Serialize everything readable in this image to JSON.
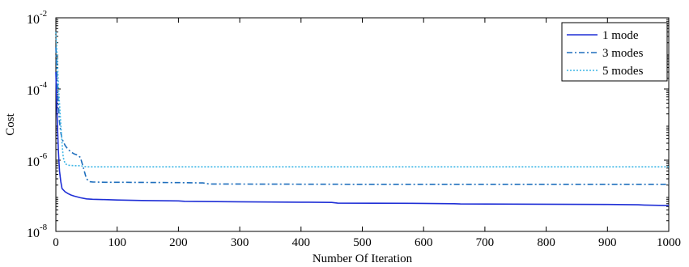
{
  "chart_data": {
    "type": "line",
    "xlabel": "Number Of Iteration",
    "ylabel": "Cost",
    "xlim": [
      0,
      1000
    ],
    "ylim": [
      1e-08,
      0.01
    ],
    "yscale": "log",
    "xticks": [
      0,
      100,
      200,
      300,
      400,
      500,
      600,
      700,
      800,
      900,
      1000
    ],
    "yticks": [
      {
        "value": 1e-08,
        "base": "10",
        "exp": "-8"
      },
      {
        "value": 1e-06,
        "base": "10",
        "exp": "-6"
      },
      {
        "value": 0.0001,
        "base": "10",
        "exp": "-4"
      },
      {
        "value": 0.01,
        "base": "10",
        "exp": "-2"
      }
    ],
    "grid": false,
    "legend_position": "top-right",
    "series": [
      {
        "name": "1 mode",
        "color": "#1f2fd6",
        "style": "solid",
        "x": [
          0,
          2,
          4,
          6,
          8,
          10,
          15,
          20,
          25,
          30,
          40,
          50,
          60,
          80,
          100,
          140,
          200,
          210,
          300,
          400,
          450,
          460,
          600,
          650,
          660,
          900,
          950,
          960,
          1000
        ],
        "y": [
          0.0003,
          2e-05,
          2e-06,
          5e-07,
          2.5e-07,
          1.6e-07,
          1.3e-07,
          1.15e-07,
          1.05e-07,
          9.8e-08,
          8.8e-08,
          8.2e-08,
          8e-08,
          7.8e-08,
          7.6e-08,
          7.4e-08,
          7.2e-08,
          7e-08,
          6.8e-08,
          6.6e-08,
          6.5e-08,
          6.2e-08,
          6.1e-08,
          6e-08,
          5.9e-08,
          5.7e-08,
          5.6e-08,
          5.5e-08,
          5.3e-08
        ]
      },
      {
        "name": "3 modes",
        "color": "#1f6fbd",
        "style": "dashdot",
        "x": [
          0,
          2,
          4,
          6,
          8,
          10,
          15,
          20,
          25,
          30,
          35,
          40,
          45,
          50,
          55,
          60,
          80,
          100,
          200,
          240,
          250,
          500,
          1000
        ],
        "y": [
          0.0015,
          0.0002,
          4e-05,
          1.2e-05,
          6e-06,
          4e-06,
          2.6e-06,
          2e-06,
          1.7e-06,
          1.5e-06,
          1.4e-06,
          1.2e-06,
          6e-07,
          3e-07,
          2.5e-07,
          2.45e-07,
          2.4e-07,
          2.4e-07,
          2.35e-07,
          2.3e-07,
          2.15e-07,
          2.1e-07,
          2.1e-07
        ]
      },
      {
        "name": "5 modes",
        "color": "#3fb6e6",
        "style": "dotted",
        "x": [
          0,
          2,
          4,
          6,
          8,
          10,
          12,
          15,
          20,
          30,
          40,
          50,
          100,
          500,
          1000
        ],
        "y": [
          0.004,
          0.001,
          0.00015,
          4e-05,
          1e-05,
          3e-06,
          1.2e-06,
          8e-07,
          7.2e-07,
          7e-07,
          7e-07,
          6.5e-07,
          6.5e-07,
          6.5e-07,
          6.5e-07
        ]
      }
    ]
  }
}
